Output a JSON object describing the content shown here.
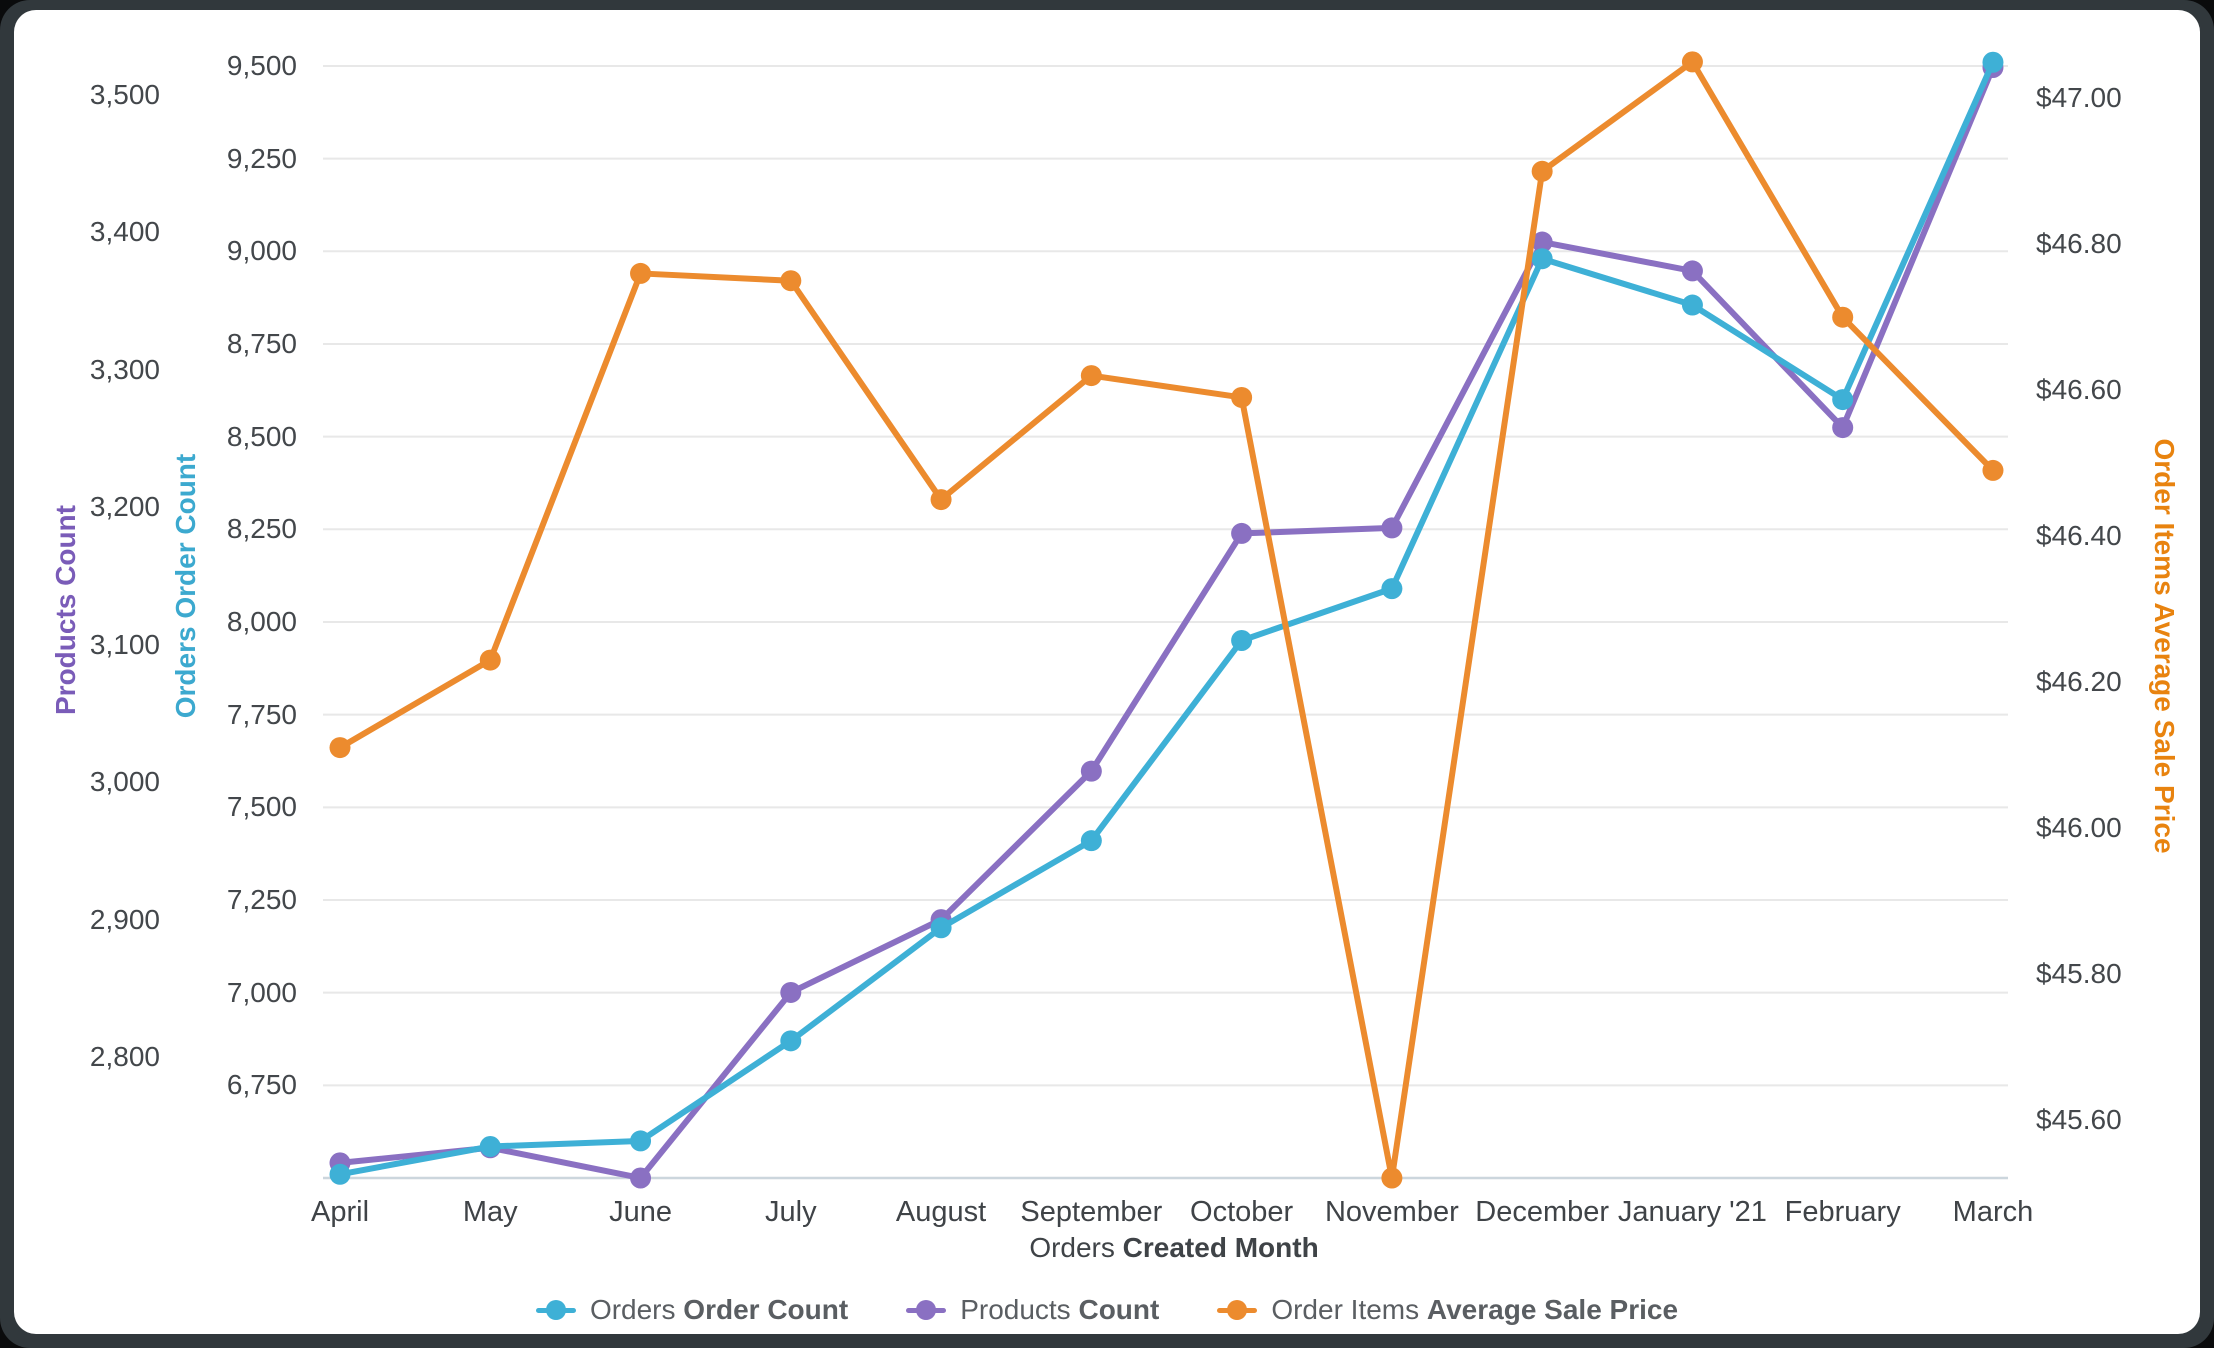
{
  "chart_data": {
    "type": "line",
    "title": "",
    "categories": [
      "April",
      "May",
      "June",
      "July",
      "August",
      "September",
      "October",
      "November",
      "December",
      "January '21",
      "February",
      "March"
    ],
    "x_axis": {
      "label_regular": "Orders",
      "label_bold": "Created Month"
    },
    "series": [
      {
        "key": "orders",
        "name_regular": "Orders",
        "name_bold": "Order Count",
        "color": "#3EB0D6",
        "axis": "orders",
        "values": [
          6510,
          6585,
          6600,
          6870,
          7175,
          7410,
          7950,
          8090,
          8980,
          8855,
          8600,
          9510
        ]
      },
      {
        "key": "products",
        "name_regular": "Products",
        "name_bold": "Count",
        "color": "#8A70C2",
        "axis": "products",
        "values": [
          2723,
          2734,
          2712,
          2847,
          2900,
          3008,
          3181,
          3185,
          3393,
          3372,
          3258,
          3520
        ]
      },
      {
        "key": "price",
        "name_regular": "Order Items",
        "name_bold": "Average Sale Price",
        "color": "#EC8B2E",
        "axis": "price",
        "values": [
          46.11,
          46.23,
          46.76,
          46.75,
          46.45,
          46.62,
          46.59,
          45.52,
          46.9,
          47.05,
          46.7,
          46.49
        ]
      }
    ],
    "axes": {
      "products": {
        "title": "Products Count",
        "color": "#7A5CB8",
        "min": 2712,
        "max": 3540,
        "tick_values": [
          2800,
          2900,
          3000,
          3100,
          3200,
          3300,
          3400,
          3500
        ],
        "tick_labels": [
          "2,800",
          "2,900",
          "3,000",
          "3,100",
          "3,200",
          "3,300",
          "3,400",
          "3,500"
        ],
        "gridlines": false
      },
      "orders": {
        "title": "Orders Order Count",
        "color": "#3CA9CF",
        "min": 6500,
        "max": 9570,
        "tick_values": [
          6750,
          7000,
          7250,
          7500,
          7750,
          8000,
          8250,
          8500,
          8750,
          9000,
          9250,
          9500
        ],
        "tick_labels": [
          "6,750",
          "7,000",
          "7,250",
          "7,500",
          "7,750",
          "8,000",
          "8,250",
          "8,500",
          "8,750",
          "9,000",
          "9,250",
          "9,500"
        ],
        "gridlines": true
      },
      "price": {
        "title": "Order Items Average Sale Price",
        "color": "#E8830F",
        "min": 45.52,
        "max": 47.08,
        "tick_values": [
          45.6,
          45.8,
          46.0,
          46.2,
          46.4,
          46.6,
          46.8,
          47.0
        ],
        "tick_labels": [
          "$45.60",
          "$45.80",
          "$46.00",
          "$46.20",
          "$46.40",
          "$46.60",
          "$46.80",
          "$47.00"
        ],
        "gridlines": false
      }
    },
    "layout": {
      "gridline_color": "#e8e8e8",
      "baseline_color": "#ccd6dd",
      "legend_position": "bottom",
      "z_order": [
        "products",
        "orders",
        "price"
      ]
    }
  }
}
